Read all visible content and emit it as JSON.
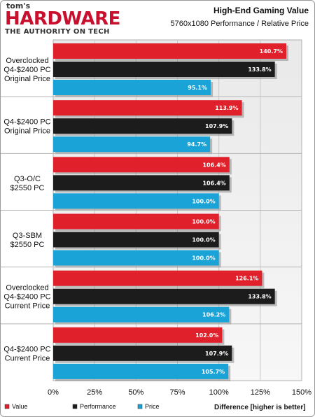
{
  "branding": {
    "top": "tom's",
    "main": "HARDWARE",
    "tagline": "THE AUTHORITY ON TECH"
  },
  "chart_data": {
    "type": "bar",
    "orientation": "horizontal",
    "title": "High-End Gaming Value",
    "subtitle": "5760x1080 Performance / Relative Price",
    "categories": [
      [
        "Overclocked",
        "Q4-$2400 PC",
        "Original Price"
      ],
      [
        "Q4-$2400 PC",
        "Original Price"
      ],
      [
        "Q3-O/C",
        "$2550 PC"
      ],
      [
        "Q3-SBM",
        "$2550 PC"
      ],
      [
        "Overclocked",
        "Q4-$2400 PC",
        "Current Price"
      ],
      [
        "Q4-$2400 PC",
        "Current Price"
      ]
    ],
    "series": [
      {
        "name": "Value",
        "color": "#e0202a",
        "values": [
          140.7,
          113.9,
          106.4,
          100.0,
          126.1,
          102.0
        ]
      },
      {
        "name": "Performance",
        "color": "#1c1c1c",
        "values": [
          133.8,
          107.9,
          106.4,
          100.0,
          133.8,
          107.9
        ]
      },
      {
        "name": "Price",
        "color": "#1aa3d6",
        "values": [
          95.1,
          94.7,
          100.0,
          100.0,
          106.2,
          105.7
        ]
      }
    ],
    "value_labels": [
      [
        "140.7%",
        "133.8%",
        "95.1%"
      ],
      [
        "113.9%",
        "107.9%",
        "94.7%"
      ],
      [
        "106.4%",
        "106.4%",
        "100.0%"
      ],
      [
        "100.0%",
        "100.0%",
        "100.0%"
      ],
      [
        "126.1%",
        "133.8%",
        "106.2%"
      ],
      [
        "102.0%",
        "107.9%",
        "105.7%"
      ]
    ],
    "xlim": [
      0,
      150
    ],
    "xticks": [
      0,
      25,
      50,
      75,
      100,
      125,
      150
    ],
    "xtick_labels": [
      "0%",
      "25%",
      "50%",
      "75%",
      "100%",
      "125%",
      "150%"
    ],
    "xlabel_bold": "Difference",
    "xlabel_rest": " [higher is better]",
    "grid": "vertical",
    "legend_position": "bottom"
  }
}
